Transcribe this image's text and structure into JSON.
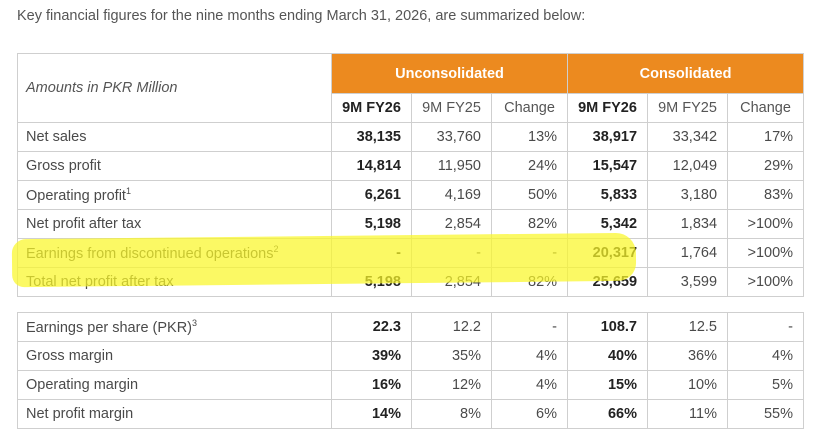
{
  "intro": "Key financial figures for the nine months ending March 31, 2026, are summarized below:",
  "header": {
    "amounts_label": "Amounts in PKR Million",
    "group_unconsolidated": "Unconsolidated",
    "group_consolidated": "Consolidated",
    "col_current": "9M FY26",
    "col_prior": "9M FY25",
    "col_change": "Change"
  },
  "rows": [
    {
      "label": "Net sales",
      "sup": "",
      "u_cur": "38,135",
      "u_prev": "33,760",
      "u_chg": "13%",
      "c_cur": "38,917",
      "c_prev": "33,342",
      "c_chg": "17%"
    },
    {
      "label": "Gross profit",
      "sup": "",
      "u_cur": "14,814",
      "u_prev": "11,950",
      "u_chg": "24%",
      "c_cur": "15,547",
      "c_prev": "12,049",
      "c_chg": "29%"
    },
    {
      "label": "Operating profit",
      "sup": "1",
      "u_cur": "6,261",
      "u_prev": "4,169",
      "u_chg": "50%",
      "c_cur": "5,833",
      "c_prev": "3,180",
      "c_chg": "83%"
    },
    {
      "label": "Net profit after tax",
      "sup": "",
      "u_cur": "5,198",
      "u_prev": "2,854",
      "u_chg": "82%",
      "c_cur": "5,342",
      "c_prev": "1,834",
      "c_chg": ">100%"
    },
    {
      "label": "Earnings from discontinued operations",
      "sup": "2",
      "u_cur": "-",
      "u_prev": "-",
      "u_chg": "-",
      "c_cur": "20,317",
      "c_prev": "1,764",
      "c_chg": ">100%"
    },
    {
      "label": "Total net profit after tax",
      "sup": "",
      "u_cur": "5,198",
      "u_prev": "2,854",
      "u_chg": "82%",
      "c_cur": "25,659",
      "c_prev": "3,599",
      "c_chg": ">100%"
    }
  ],
  "rows2": [
    {
      "label": "Earnings per share (PKR)",
      "sup": "3",
      "u_cur": "22.3",
      "u_prev": "12.2",
      "u_chg": "-",
      "c_cur": "108.7",
      "c_prev": "12.5",
      "c_chg": "-"
    },
    {
      "label": "Gross margin",
      "sup": "",
      "u_cur": "39%",
      "u_prev": "35%",
      "u_chg": "4%",
      "c_cur": "40%",
      "c_prev": "36%",
      "c_chg": "4%"
    },
    {
      "label": "Operating margin",
      "sup": "",
      "u_cur": "16%",
      "u_prev": "12%",
      "u_chg": "4%",
      "c_cur": "15%",
      "c_prev": "10%",
      "c_chg": "5%"
    },
    {
      "label": "Net profit margin",
      "sup": "",
      "u_cur": "14%",
      "u_prev": "8%",
      "u_chg": "6%",
      "c_cur": "66%",
      "c_prev": "11%",
      "c_chg": "55%"
    }
  ],
  "colors": {
    "accent": "#ec8a1f",
    "highlight": "#faf628"
  }
}
